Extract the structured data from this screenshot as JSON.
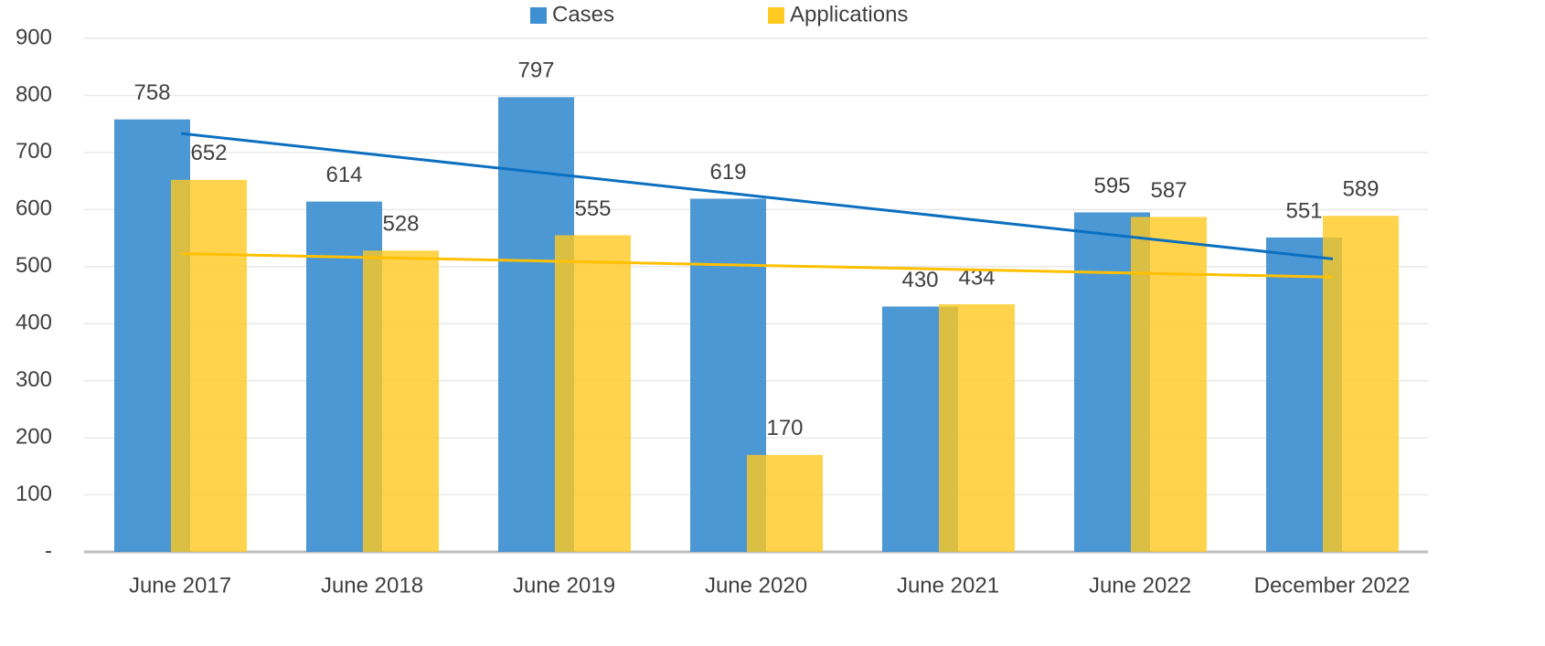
{
  "chart_data": {
    "type": "bar",
    "categories": [
      "June 2017",
      "June 2018",
      "June 2019",
      "June 2020",
      "June 2021",
      "June 2022",
      "December 2022"
    ],
    "series": [
      {
        "name": "Cases",
        "color": "#3d8fd1",
        "trend_color": "#0b6fc0",
        "values": [
          758,
          614,
          797,
          619,
          430,
          595,
          551
        ]
      },
      {
        "name": "Applications",
        "color": "#ffc91f",
        "trend_color": "#ffc000",
        "values": [
          652,
          528,
          555,
          170,
          434,
          587,
          589
        ]
      }
    ],
    "ylim": [
      0,
      900
    ],
    "yticks": [
      {
        "value": 0,
        "label": "-"
      },
      100,
      200,
      300,
      400,
      500,
      600,
      700,
      800,
      900
    ],
    "grid": true,
    "trendline": true,
    "legend": "top"
  }
}
